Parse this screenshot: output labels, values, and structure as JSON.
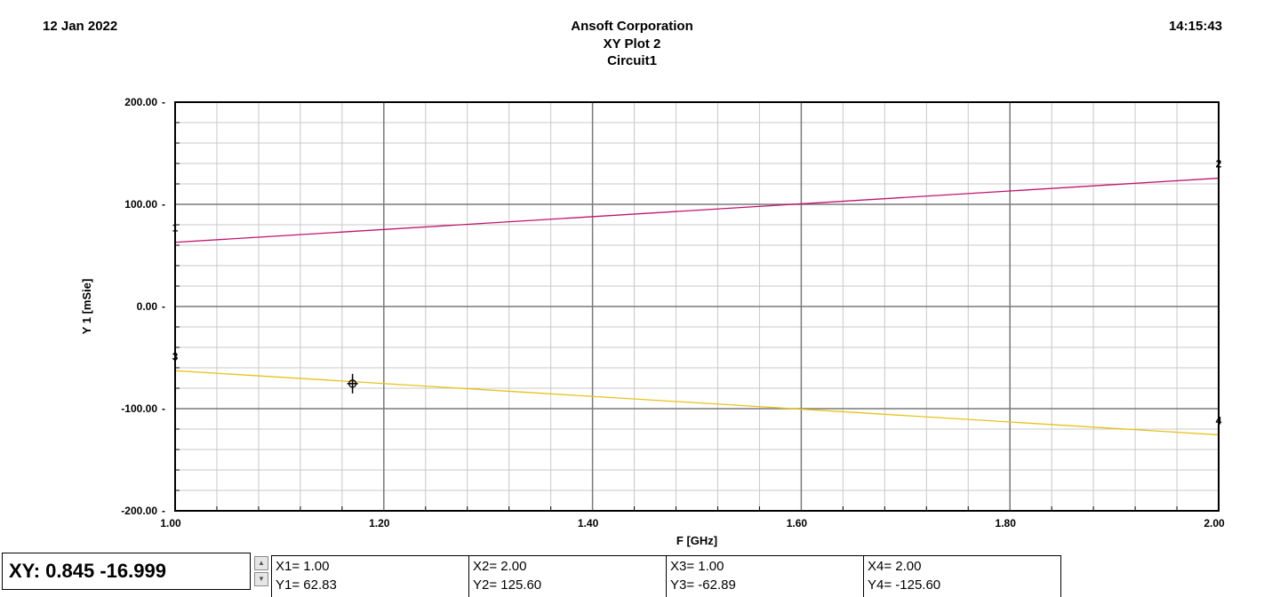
{
  "header": {
    "date": "12 Jan 2022",
    "time": "14:15:43",
    "company": "Ansoft Corporation",
    "plot_name": "XY Plot 2",
    "circuit": "Circuit1"
  },
  "readout": {
    "xy": "XY: 0.845 -16.999"
  },
  "markers": [
    {
      "x": "X1= 1.00",
      "y": "Y1= 62.83"
    },
    {
      "x": "X2= 2.00",
      "y": "Y2= 125.60"
    },
    {
      "x": "X3= 1.00",
      "y": "Y3= -62.89"
    },
    {
      "x": "X4= 2.00",
      "y": "Y4= -125.60"
    }
  ],
  "chart_data": {
    "type": "line",
    "title": "",
    "xlabel": "F [GHz]",
    "ylabel": "Y 1  [mSie]",
    "xlim": [
      1.0,
      2.0
    ],
    "ylim": [
      -200,
      200
    ],
    "xticks": [
      "1.00",
      "1.20",
      "1.40",
      "1.60",
      "1.80",
      "2.00"
    ],
    "yticks": [
      "200.00",
      "100.00",
      "0.00",
      "-100.00",
      "-200.00"
    ],
    "xtick_values": [
      1.0,
      1.2,
      1.4,
      1.6,
      1.8,
      2.0
    ],
    "ytick_values": [
      200,
      100,
      0,
      -100,
      -200
    ],
    "grid": true,
    "series": [
      {
        "color": "#c0146e",
        "x": [
          1.0,
          2.0
        ],
        "y": [
          62.83,
          125.6
        ]
      },
      {
        "color": "#e8c21a",
        "x": [
          1.0,
          2.0
        ],
        "y": [
          -62.89,
          -125.6
        ]
      }
    ],
    "marker_points": [
      {
        "label": "1",
        "x": 1.0,
        "y": 62.83
      },
      {
        "label": "2",
        "x": 2.0,
        "y": 125.6
      },
      {
        "label": "3",
        "x": 1.0,
        "y": -62.89
      },
      {
        "label": "4",
        "x": 2.0,
        "y": -125.6
      }
    ],
    "cursor": {
      "x": 1.17,
      "y": -75.5
    }
  }
}
